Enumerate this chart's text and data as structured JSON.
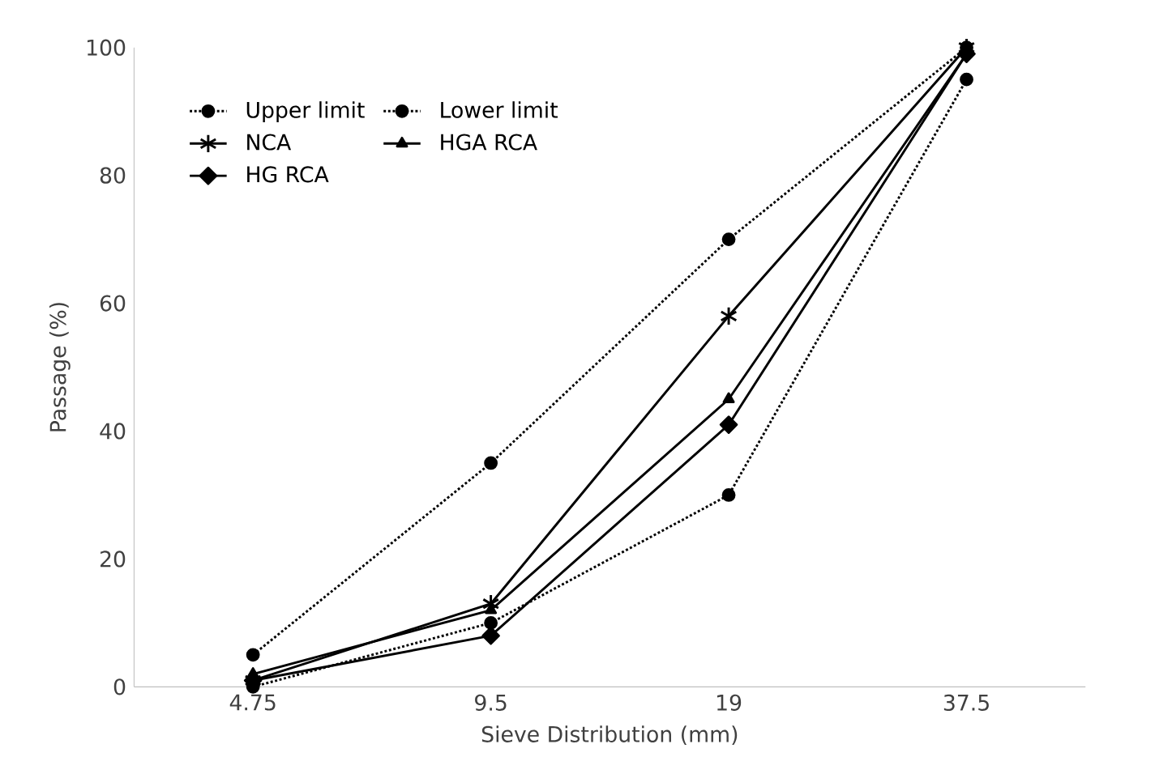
{
  "chart_data": {
    "type": "line",
    "xlabel": "Sieve Distribution (mm)",
    "ylabel": "Passage (%)",
    "categories": [
      "4.75",
      "9.5",
      "19",
      "37.5"
    ],
    "ylim": [
      0,
      100
    ],
    "yticks": [
      0,
      20,
      40,
      60,
      80,
      100
    ],
    "grid": false,
    "legend": "top left",
    "series": [
      {
        "name": "Upper limit",
        "color": "#000000",
        "marker": "circle",
        "line_style": "dotted",
        "values": [
          5,
          35,
          70,
          100
        ]
      },
      {
        "name": "Lower limit",
        "color": "#000000",
        "marker": "circle",
        "line_style": "dotted",
        "values": [
          0,
          10,
          30,
          95
        ]
      },
      {
        "name": "NCA",
        "color": "#000000",
        "marker": "cross",
        "line_style": "solid",
        "values": [
          1,
          13,
          58,
          100
        ]
      },
      {
        "name": "HGA RCA",
        "color": "#000000",
        "marker": "triangle",
        "line_style": "solid",
        "values": [
          2,
          12,
          45,
          99
        ]
      },
      {
        "name": "HG RCA",
        "color": "#000000",
        "marker": "diamond",
        "line_style": "solid",
        "values": [
          1,
          8,
          41,
          99
        ]
      }
    ]
  }
}
